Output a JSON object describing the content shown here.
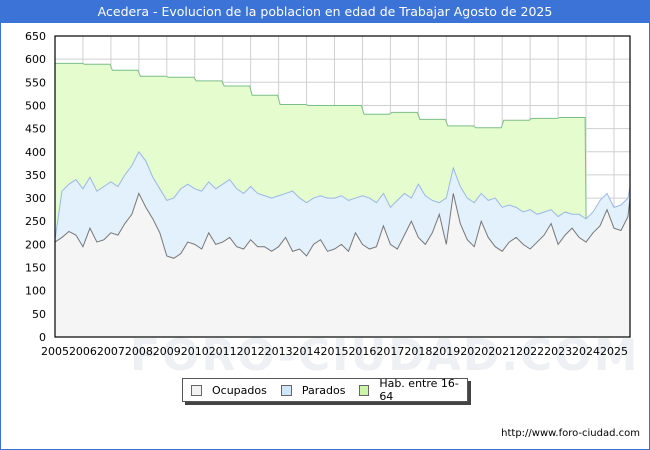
{
  "title": "Acedera - Evolucion de la poblacion en edad de Trabajar Agosto de 2025",
  "footer": "http://www.foro-ciudad.com",
  "watermark": "FORO-CIUDAD.COM",
  "legend": [
    {
      "label": "Ocupados",
      "color": "#f2f2f2"
    },
    {
      "label": "Parados",
      "color": "#cfe6fb"
    },
    {
      "label": "Hab. entre 16-64",
      "color": "#ccf5a8"
    }
  ],
  "colors": {
    "hab_fill": "#e4fcce",
    "hab_line": "#7cbf8a",
    "parados_fill": "#e3f1fd",
    "parados_line": "#9ab8e8",
    "ocupados_fill": "#f5f5f5",
    "ocupados_line": "#777777",
    "grid": "#d0d0d0"
  },
  "chart_data": {
    "type": "area",
    "title": "Acedera - Evolucion de la poblacion en edad de Trabajar Agosto de 2025",
    "xlabel": "",
    "ylabel": "",
    "ylim": [
      0,
      650
    ],
    "xlim": [
      2005,
      2025.6
    ],
    "yticks": [
      0,
      50,
      100,
      150,
      200,
      250,
      300,
      350,
      400,
      450,
      500,
      550,
      600,
      650
    ],
    "xticks": [
      2005,
      2006,
      2007,
      2008,
      2009,
      2010,
      2011,
      2012,
      2013,
      2014,
      2015,
      2016,
      2017,
      2018,
      2019,
      2020,
      2021,
      2022,
      2023,
      2024,
      2025
    ],
    "grid": true,
    "legend_position": "bottom",
    "series": [
      {
        "name": "Hab. entre 16-64",
        "x": [
          2005,
          2006,
          2007,
          2008,
          2009,
          2010,
          2011,
          2012,
          2013,
          2014,
          2015,
          2016,
          2017,
          2018,
          2019,
          2020,
          2021,
          2022,
          2023
        ],
        "values": [
          591,
          589,
          576,
          563,
          561,
          553,
          542,
          522,
          502,
          500,
          500,
          481,
          485,
          470,
          456,
          452,
          468,
          472,
          474
        ]
      },
      {
        "name": "Parados (stacked total Ocupados+Parados)",
        "x": [
          2005.0,
          2005.25,
          2005.5,
          2005.75,
          2006.0,
          2006.25,
          2006.5,
          2006.75,
          2007.0,
          2007.25,
          2007.5,
          2007.75,
          2008.0,
          2008.25,
          2008.5,
          2008.75,
          2009.0,
          2009.25,
          2009.5,
          2009.75,
          2010.0,
          2010.25,
          2010.5,
          2010.75,
          2011.0,
          2011.25,
          2011.5,
          2011.75,
          2012.0,
          2012.25,
          2012.5,
          2012.75,
          2013.0,
          2013.25,
          2013.5,
          2013.75,
          2014.0,
          2014.25,
          2014.5,
          2014.75,
          2015.0,
          2015.25,
          2015.5,
          2015.75,
          2016.0,
          2016.25,
          2016.5,
          2016.75,
          2017.0,
          2017.25,
          2017.5,
          2017.75,
          2018.0,
          2018.25,
          2018.5,
          2018.75,
          2019.0,
          2019.25,
          2019.5,
          2019.75,
          2020.0,
          2020.25,
          2020.5,
          2020.75,
          2021.0,
          2021.25,
          2021.5,
          2021.75,
          2022.0,
          2022.25,
          2022.5,
          2022.75,
          2023.0,
          2023.25,
          2023.5,
          2023.75,
          2024.0,
          2024.25,
          2024.5,
          2024.75,
          2025.0,
          2025.25,
          2025.5,
          2025.6
        ],
        "values": [
          210,
          315,
          330,
          340,
          320,
          345,
          315,
          325,
          335,
          325,
          350,
          370,
          400,
          380,
          345,
          320,
          295,
          300,
          320,
          330,
          320,
          315,
          335,
          320,
          330,
          340,
          320,
          310,
          325,
          310,
          305,
          300,
          305,
          310,
          315,
          300,
          290,
          300,
          305,
          300,
          300,
          305,
          295,
          300,
          305,
          300,
          290,
          310,
          280,
          295,
          310,
          300,
          330,
          305,
          295,
          290,
          300,
          365,
          325,
          300,
          290,
          310,
          295,
          300,
          280,
          285,
          280,
          270,
          275,
          265,
          270,
          275,
          260,
          270,
          265,
          265,
          255,
          270,
          295,
          310,
          280,
          285,
          300,
          325
        ]
      },
      {
        "name": "Ocupados",
        "x": [
          2005.0,
          2005.25,
          2005.5,
          2005.75,
          2006.0,
          2006.25,
          2006.5,
          2006.75,
          2007.0,
          2007.25,
          2007.5,
          2007.75,
          2008.0,
          2008.25,
          2008.5,
          2008.75,
          2009.0,
          2009.25,
          2009.5,
          2009.75,
          2010.0,
          2010.25,
          2010.5,
          2010.75,
          2011.0,
          2011.25,
          2011.5,
          2011.75,
          2012.0,
          2012.25,
          2012.5,
          2012.75,
          2013.0,
          2013.25,
          2013.5,
          2013.75,
          2014.0,
          2014.25,
          2014.5,
          2014.75,
          2015.0,
          2015.25,
          2015.5,
          2015.75,
          2016.0,
          2016.25,
          2016.5,
          2016.75,
          2017.0,
          2017.25,
          2017.5,
          2017.75,
          2018.0,
          2018.25,
          2018.5,
          2018.75,
          2019.0,
          2019.25,
          2019.5,
          2019.75,
          2020.0,
          2020.25,
          2020.5,
          2020.75,
          2021.0,
          2021.25,
          2021.5,
          2021.75,
          2022.0,
          2022.25,
          2022.5,
          2022.75,
          2023.0,
          2023.25,
          2023.5,
          2023.75,
          2024.0,
          2024.25,
          2024.5,
          2024.75,
          2025.0,
          2025.25,
          2025.5,
          2025.6
        ],
        "values": [
          205,
          215,
          228,
          220,
          195,
          235,
          205,
          210,
          225,
          220,
          245,
          265,
          310,
          280,
          255,
          225,
          175,
          170,
          180,
          205,
          200,
          190,
          225,
          200,
          205,
          215,
          195,
          190,
          210,
          195,
          195,
          185,
          195,
          215,
          185,
          190,
          175,
          200,
          210,
          185,
          190,
          200,
          185,
          225,
          200,
          190,
          195,
          240,
          200,
          190,
          220,
          250,
          215,
          200,
          225,
          265,
          200,
          310,
          245,
          210,
          195,
          250,
          215,
          195,
          185,
          205,
          215,
          200,
          190,
          205,
          220,
          245,
          200,
          220,
          235,
          215,
          205,
          225,
          240,
          275,
          235,
          230,
          260,
          300
        ]
      }
    ]
  }
}
